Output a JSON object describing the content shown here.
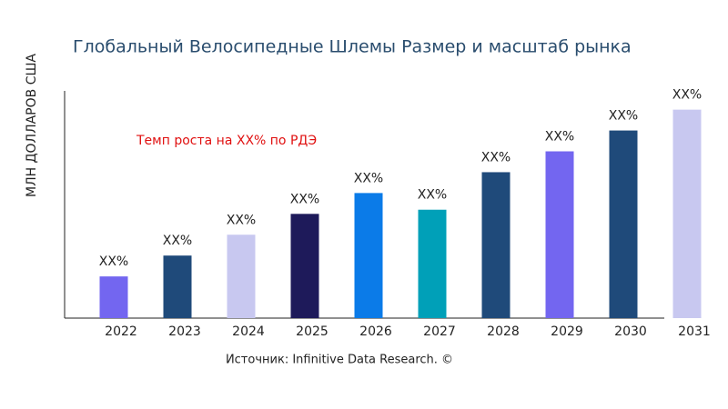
{
  "chart_data": {
    "type": "bar",
    "title": "Глобальный Велосипедные Шлемы Размер и масштаб рынка",
    "y_label": "МЛН ДОЛЛАРОВ США",
    "annotation": "Темп роста на XX% по РДЭ",
    "source": "Источник: Infinitive Data Research. ©",
    "categories": [
      "2022",
      "2023",
      "2024",
      "2025",
      "2026",
      "2027",
      "2028",
      "2029",
      "2030",
      "2031"
    ],
    "values": [
      1.0,
      1.5,
      2.0,
      2.5,
      3.0,
      2.6,
      3.5,
      4.0,
      4.5,
      5.0
    ],
    "value_labels": [
      "XX%",
      "XX%",
      "XX%",
      "XX%",
      "XX%",
      "XX%",
      "XX%",
      "XX%",
      "XX%",
      "XX%"
    ],
    "colors": [
      "#7366f0",
      "#1f4a7a",
      "#c8c8f0",
      "#1e1a5a",
      "#0b7be8",
      "#00a0b8",
      "#1f4a7a",
      "#7366f0",
      "#1f4a7a",
      "#c8c8f0"
    ],
    "ylim": [
      0,
      5.45
    ]
  }
}
